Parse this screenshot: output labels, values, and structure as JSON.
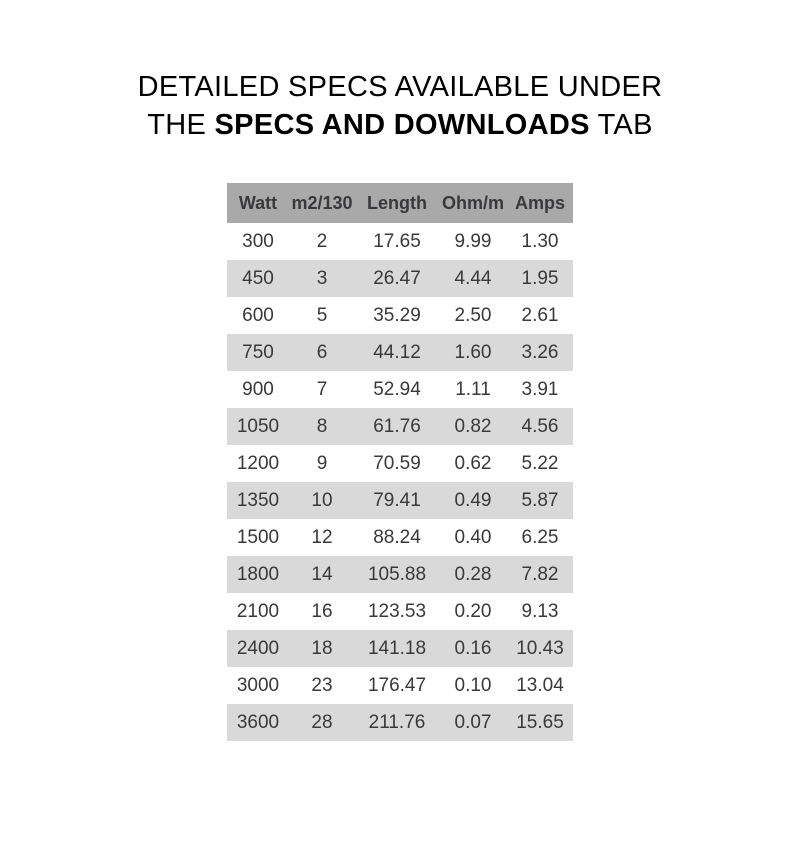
{
  "title": {
    "line1": "DETAILED SPECS AVAILABLE UNDER",
    "line2_prefix": "THE ",
    "line2_bold": "SPECS AND DOWNLOADS",
    "line2_suffix": " TAB"
  },
  "colors": {
    "header_bg": "#a9a9a9",
    "row_alt_bg": "#d9d9d9",
    "row_bg": "#ffffff",
    "table_text": "#39393c",
    "title_text": "#000000"
  },
  "chart_data": {
    "type": "table",
    "title": "DETAILED SPECS AVAILABLE UNDER THE SPECS AND DOWNLOADS TAB",
    "columns": [
      "Watt",
      "m2/130",
      "Length",
      "Ohm/m",
      "Amps"
    ],
    "rows": [
      [
        "300",
        "2",
        "17.65",
        "9.99",
        "1.30"
      ],
      [
        "450",
        "3",
        "26.47",
        "4.44",
        "1.95"
      ],
      [
        "600",
        "5",
        "35.29",
        "2.50",
        "2.61"
      ],
      [
        "750",
        "6",
        "44.12",
        "1.60",
        "3.26"
      ],
      [
        "900",
        "7",
        "52.94",
        "1.11",
        "3.91"
      ],
      [
        "1050",
        "8",
        "61.76",
        "0.82",
        "4.56"
      ],
      [
        "1200",
        "9",
        "70.59",
        "0.62",
        "5.22"
      ],
      [
        "1350",
        "10",
        "79.41",
        "0.49",
        "5.87"
      ],
      [
        "1500",
        "12",
        "88.24",
        "0.40",
        "6.25"
      ],
      [
        "1800",
        "14",
        "105.88",
        "0.28",
        "7.82"
      ],
      [
        "2100",
        "16",
        "123.53",
        "0.20",
        "9.13"
      ],
      [
        "2400",
        "18",
        "141.18",
        "0.16",
        "10.43"
      ],
      [
        "3000",
        "23",
        "176.47",
        "0.10",
        "13.04"
      ],
      [
        "3600",
        "28",
        "211.76",
        "0.07",
        "15.65"
      ]
    ],
    "layout": {
      "header_style": "solid gray band",
      "row_striping": "white / light gray alternating starting white",
      "alignment": "all columns centered"
    }
  }
}
